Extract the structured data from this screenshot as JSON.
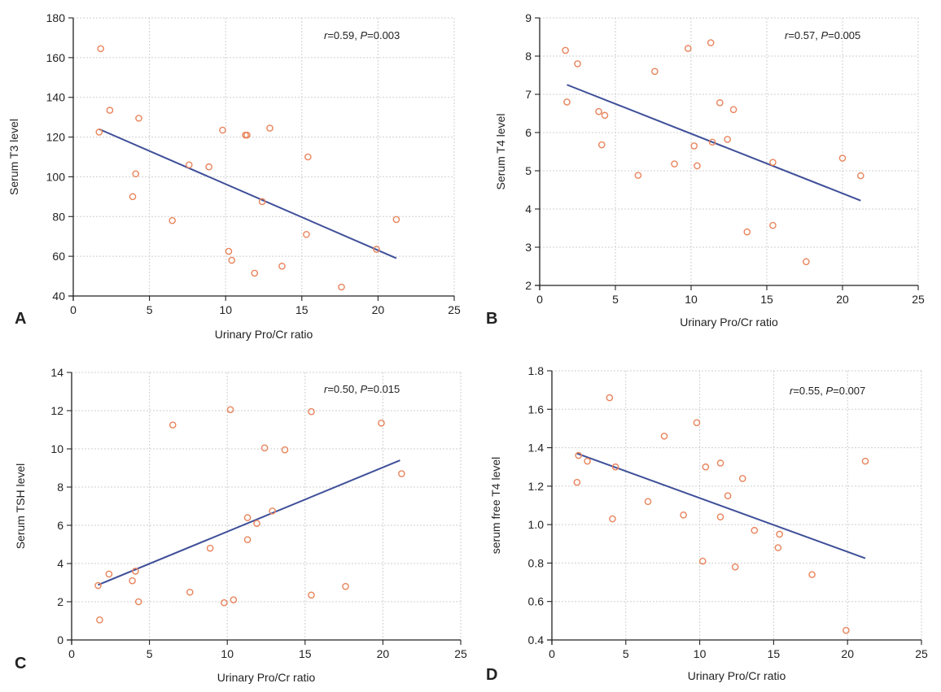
{
  "colors": {
    "line": "#3f4f99",
    "point": "#e8845c",
    "grid": "#cfcfcf",
    "axis": "#222222",
    "text": "#222222"
  },
  "chart_data": [
    {
      "panel": "A",
      "type": "scatter",
      "xlabel": "Urinary Pro/Cr ratio",
      "ylabel": "Serum T3 level",
      "xlim": [
        0,
        25
      ],
      "ylim": [
        40,
        180
      ],
      "xticks": [
        0,
        5,
        10,
        15,
        20,
        25
      ],
      "yticks": [
        40,
        60,
        80,
        100,
        120,
        140,
        160,
        180
      ],
      "tick_decimals": 0,
      "annotation": {
        "r_label": "r",
        "r_text": "=0.59,  ",
        "p_label": "P",
        "p_text": "=0.003"
      },
      "fit_line": {
        "x": [
          1.7,
          21.2
        ],
        "y": [
          124,
          59
        ]
      },
      "points": [
        {
          "x": 1.8,
          "y": 164.5
        },
        {
          "x": 1.7,
          "y": 122.5
        },
        {
          "x": 2.4,
          "y": 133.5
        },
        {
          "x": 4.3,
          "y": 129.5
        },
        {
          "x": 3.9,
          "y": 90
        },
        {
          "x": 4.1,
          "y": 101.5
        },
        {
          "x": 6.5,
          "y": 78
        },
        {
          "x": 7.6,
          "y": 106
        },
        {
          "x": 8.9,
          "y": 105
        },
        {
          "x": 9.8,
          "y": 123.5
        },
        {
          "x": 11.3,
          "y": 121
        },
        {
          "x": 11.4,
          "y": 121
        },
        {
          "x": 12.9,
          "y": 124.5
        },
        {
          "x": 12.4,
          "y": 87.5
        },
        {
          "x": 10.2,
          "y": 62.5
        },
        {
          "x": 10.4,
          "y": 58
        },
        {
          "x": 11.9,
          "y": 51.5
        },
        {
          "x": 13.7,
          "y": 55
        },
        {
          "x": 15.4,
          "y": 110
        },
        {
          "x": 15.3,
          "y": 71
        },
        {
          "x": 17.6,
          "y": 44.5
        },
        {
          "x": 19.9,
          "y": 63.5
        },
        {
          "x": 21.2,
          "y": 78.5
        }
      ]
    },
    {
      "panel": "B",
      "type": "scatter",
      "xlabel": "Urinary Pro/Cr ratio",
      "ylabel": "Serum T4 level",
      "xlim": [
        0,
        25
      ],
      "ylim": [
        2,
        9
      ],
      "xticks": [
        0,
        5,
        10,
        15,
        20,
        25
      ],
      "yticks": [
        2,
        3,
        4,
        5,
        6,
        7,
        8,
        9
      ],
      "tick_decimals": 0,
      "annotation": {
        "r_label": "r",
        "r_text": "=0.57,  ",
        "p_label": "P",
        "p_text": "=0.005"
      },
      "fit_line": {
        "x": [
          1.8,
          21.2
        ],
        "y": [
          7.25,
          4.22
        ]
      },
      "points": [
        {
          "x": 1.7,
          "y": 8.15
        },
        {
          "x": 2.5,
          "y": 7.8
        },
        {
          "x": 1.8,
          "y": 6.8
        },
        {
          "x": 3.9,
          "y": 6.55
        },
        {
          "x": 4.3,
          "y": 6.45
        },
        {
          "x": 4.1,
          "y": 5.68
        },
        {
          "x": 6.5,
          "y": 4.88
        },
        {
          "x": 7.6,
          "y": 7.6
        },
        {
          "x": 8.9,
          "y": 5.18
        },
        {
          "x": 9.8,
          "y": 8.2
        },
        {
          "x": 11.3,
          "y": 8.35
        },
        {
          "x": 10.2,
          "y": 5.65
        },
        {
          "x": 10.4,
          "y": 5.13
        },
        {
          "x": 11.9,
          "y": 6.78
        },
        {
          "x": 12.8,
          "y": 6.6
        },
        {
          "x": 11.4,
          "y": 5.75
        },
        {
          "x": 12.4,
          "y": 5.82
        },
        {
          "x": 13.7,
          "y": 3.4
        },
        {
          "x": 15.4,
          "y": 5.22
        },
        {
          "x": 15.4,
          "y": 3.57
        },
        {
          "x": 17.6,
          "y": 2.62
        },
        {
          "x": 20.0,
          "y": 5.33
        },
        {
          "x": 21.2,
          "y": 4.87
        }
      ]
    },
    {
      "panel": "C",
      "type": "scatter",
      "xlabel": "Urinary Pro/Cr ratio",
      "ylabel": "Serum TSH level",
      "xlim": [
        0,
        25
      ],
      "ylim": [
        0,
        14
      ],
      "xticks": [
        0,
        5,
        10,
        15,
        20,
        25
      ],
      "yticks": [
        0,
        2,
        4,
        6,
        8,
        10,
        12,
        14
      ],
      "tick_decimals": 0,
      "annotation": {
        "r_label": "r",
        "r_text": "=0.50,  ",
        "p_label": "P",
        "p_text": "=0.015"
      },
      "fit_line": {
        "x": [
          1.7,
          21.1
        ],
        "y": [
          2.88,
          9.4
        ]
      },
      "points": [
        {
          "x": 1.7,
          "y": 2.85
        },
        {
          "x": 1.8,
          "y": 1.05
        },
        {
          "x": 2.4,
          "y": 3.45
        },
        {
          "x": 3.9,
          "y": 3.1
        },
        {
          "x": 4.1,
          "y": 3.6
        },
        {
          "x": 4.3,
          "y": 2.0
        },
        {
          "x": 6.5,
          "y": 11.25
        },
        {
          "x": 7.6,
          "y": 2.5
        },
        {
          "x": 8.9,
          "y": 4.8
        },
        {
          "x": 9.8,
          "y": 1.95
        },
        {
          "x": 10.2,
          "y": 12.05
        },
        {
          "x": 10.4,
          "y": 2.1
        },
        {
          "x": 11.3,
          "y": 6.4
        },
        {
          "x": 11.3,
          "y": 5.25
        },
        {
          "x": 11.9,
          "y": 6.1
        },
        {
          "x": 12.4,
          "y": 10.05
        },
        {
          "x": 12.9,
          "y": 6.75
        },
        {
          "x": 13.7,
          "y": 9.95
        },
        {
          "x": 15.4,
          "y": 11.95
        },
        {
          "x": 15.4,
          "y": 2.35
        },
        {
          "x": 17.6,
          "y": 2.8
        },
        {
          "x": 19.9,
          "y": 11.35
        },
        {
          "x": 21.2,
          "y": 8.7
        }
      ]
    },
    {
      "panel": "D",
      "type": "scatter",
      "xlabel": "Urinary Pro/Cr ratio",
      "ylabel": "serum free T4 level",
      "xlim": [
        0,
        25
      ],
      "ylim": [
        0.4,
        1.8
      ],
      "xticks": [
        0,
        5,
        10,
        15,
        20,
        25
      ],
      "yticks": [
        0.4,
        0.6,
        0.8,
        1.0,
        1.2,
        1.4,
        1.6,
        1.8
      ],
      "tick_decimals": 1,
      "annotation": {
        "r_label": "r",
        "r_text": "=0.55,  ",
        "p_label": "P",
        "p_text": "=0.007"
      },
      "fit_line": {
        "x": [
          1.7,
          21.2
        ],
        "y": [
          1.37,
          0.825
        ]
      },
      "points": [
        {
          "x": 1.7,
          "y": 1.22
        },
        {
          "x": 1.8,
          "y": 1.36
        },
        {
          "x": 2.4,
          "y": 1.33
        },
        {
          "x": 4.3,
          "y": 1.3
        },
        {
          "x": 3.9,
          "y": 1.66
        },
        {
          "x": 4.1,
          "y": 1.03
        },
        {
          "x": 6.5,
          "y": 1.12
        },
        {
          "x": 7.6,
          "y": 1.46
        },
        {
          "x": 8.9,
          "y": 1.05
        },
        {
          "x": 9.8,
          "y": 1.53
        },
        {
          "x": 10.2,
          "y": 0.81
        },
        {
          "x": 10.4,
          "y": 1.3
        },
        {
          "x": 11.4,
          "y": 1.32
        },
        {
          "x": 11.4,
          "y": 1.04
        },
        {
          "x": 11.9,
          "y": 1.15
        },
        {
          "x": 12.4,
          "y": 0.78
        },
        {
          "x": 12.9,
          "y": 1.24
        },
        {
          "x": 13.7,
          "y": 0.97
        },
        {
          "x": 15.4,
          "y": 0.95
        },
        {
          "x": 15.3,
          "y": 0.88
        },
        {
          "x": 17.6,
          "y": 0.74
        },
        {
          "x": 19.9,
          "y": 0.45
        },
        {
          "x": 21.2,
          "y": 1.33
        }
      ]
    }
  ]
}
